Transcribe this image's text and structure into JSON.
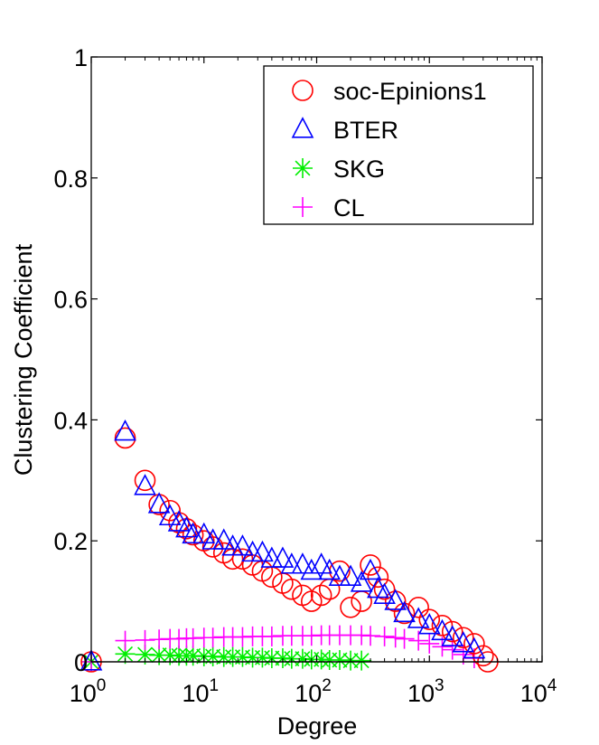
{
  "chart_data": {
    "type": "scatter",
    "title": "",
    "xlabel": "Degree",
    "ylabel": "Clustering Coefficient",
    "xscale": "log",
    "xlim": [
      1,
      10000
    ],
    "ylim": [
      0,
      1
    ],
    "grid": false,
    "legend_position": "top-right",
    "x_ticks": [
      {
        "value": 1,
        "base": "10",
        "exp": "0"
      },
      {
        "value": 10,
        "base": "10",
        "exp": "1"
      },
      {
        "value": 100,
        "base": "10",
        "exp": "2"
      },
      {
        "value": 1000,
        "base": "10",
        "exp": "3"
      },
      {
        "value": 10000,
        "base": "10",
        "exp": "4"
      }
    ],
    "y_ticks": [
      {
        "value": 0,
        "label": "0"
      },
      {
        "value": 0.2,
        "label": "0.2"
      },
      {
        "value": 0.4,
        "label": "0.4"
      },
      {
        "value": 0.6,
        "label": "0.6"
      },
      {
        "value": 0.8,
        "label": "0.8"
      },
      {
        "value": 1,
        "label": "1"
      }
    ],
    "series": [
      {
        "name": "soc-Epinions1",
        "marker": "circle",
        "color": "#ff0000",
        "x": [
          1,
          2,
          3,
          4,
          5,
          6,
          7,
          8,
          10,
          12,
          15,
          18,
          22,
          27,
          33,
          40,
          50,
          60,
          75,
          90,
          110,
          130,
          160,
          200,
          250,
          300,
          350,
          400,
          500,
          600,
          800,
          1000,
          1300,
          1600,
          2000,
          2500,
          3000,
          3300
        ],
        "y": [
          0.0,
          0.37,
          0.3,
          0.26,
          0.25,
          0.23,
          0.22,
          0.21,
          0.2,
          0.19,
          0.18,
          0.17,
          0.17,
          0.16,
          0.15,
          0.14,
          0.13,
          0.12,
          0.11,
          0.1,
          0.11,
          0.12,
          0.15,
          0.09,
          0.1,
          0.16,
          0.14,
          0.12,
          0.1,
          0.08,
          0.09,
          0.07,
          0.06,
          0.05,
          0.04,
          0.03,
          0.01,
          0.0
        ]
      },
      {
        "name": "BTER",
        "marker": "triangle",
        "color": "#0000ff",
        "x": [
          1,
          2,
          3,
          4,
          5,
          6,
          7,
          8,
          10,
          12,
          15,
          18,
          22,
          27,
          33,
          40,
          50,
          60,
          75,
          90,
          110,
          130,
          160,
          200,
          250,
          300,
          350,
          400,
          500,
          600,
          800,
          1000,
          1300,
          1600,
          2000,
          2500
        ],
        "y": [
          0.0,
          0.38,
          0.29,
          0.26,
          0.24,
          0.23,
          0.22,
          0.21,
          0.21,
          0.2,
          0.2,
          0.19,
          0.19,
          0.18,
          0.18,
          0.17,
          0.17,
          0.16,
          0.16,
          0.15,
          0.16,
          0.15,
          0.14,
          0.14,
          0.13,
          0.15,
          0.12,
          0.11,
          0.1,
          0.08,
          0.07,
          0.06,
          0.05,
          0.04,
          0.03,
          0.02
        ]
      },
      {
        "name": "SKG",
        "marker": "star",
        "color": "#00ee00",
        "x": [
          1,
          2,
          3,
          4,
          5,
          6,
          7,
          8,
          10,
          12,
          15,
          18,
          22,
          27,
          33,
          40,
          50,
          60,
          75,
          90,
          110,
          130,
          160,
          200,
          250
        ],
        "y": [
          0.0,
          0.013,
          0.012,
          0.011,
          0.011,
          0.01,
          0.01,
          0.01,
          0.009,
          0.009,
          0.008,
          0.008,
          0.008,
          0.007,
          0.007,
          0.006,
          0.006,
          0.005,
          0.005,
          0.004,
          0.004,
          0.003,
          0.003,
          0.002,
          0.002
        ]
      },
      {
        "name": "CL",
        "marker": "plus",
        "color": "#ff00ff",
        "x": [
          1,
          2,
          3,
          4,
          5,
          6,
          7,
          8,
          10,
          12,
          15,
          18,
          22,
          27,
          33,
          40,
          50,
          60,
          75,
          90,
          110,
          130,
          160,
          200,
          250,
          300,
          400,
          500,
          600,
          800,
          1000,
          1300,
          1600,
          2000,
          2500
        ],
        "y": [
          0.0,
          0.035,
          0.036,
          0.037,
          0.038,
          0.038,
          0.039,
          0.039,
          0.04,
          0.04,
          0.041,
          0.041,
          0.041,
          0.042,
          0.042,
          0.042,
          0.043,
          0.043,
          0.043,
          0.043,
          0.044,
          0.044,
          0.044,
          0.044,
          0.044,
          0.043,
          0.042,
          0.04,
          0.038,
          0.035,
          0.03,
          0.025,
          0.02,
          0.012,
          0.006
        ]
      }
    ]
  }
}
